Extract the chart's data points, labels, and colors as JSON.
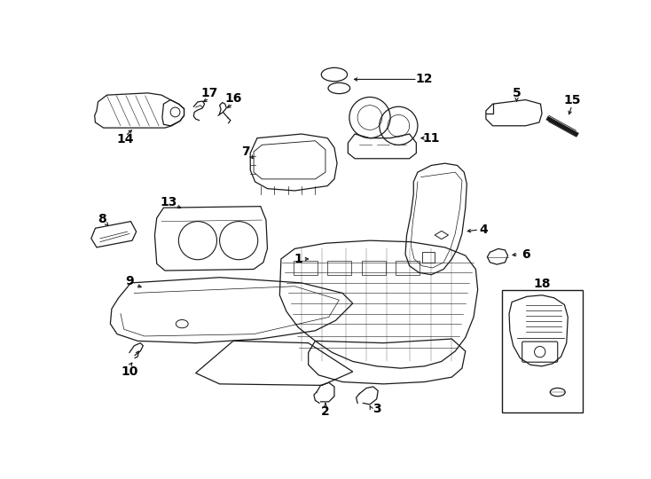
{
  "bg_color": "#ffffff",
  "line_color": "#1a1a1a",
  "lw": 0.9,
  "fontsize_label": 10,
  "fontsize_num": 10
}
